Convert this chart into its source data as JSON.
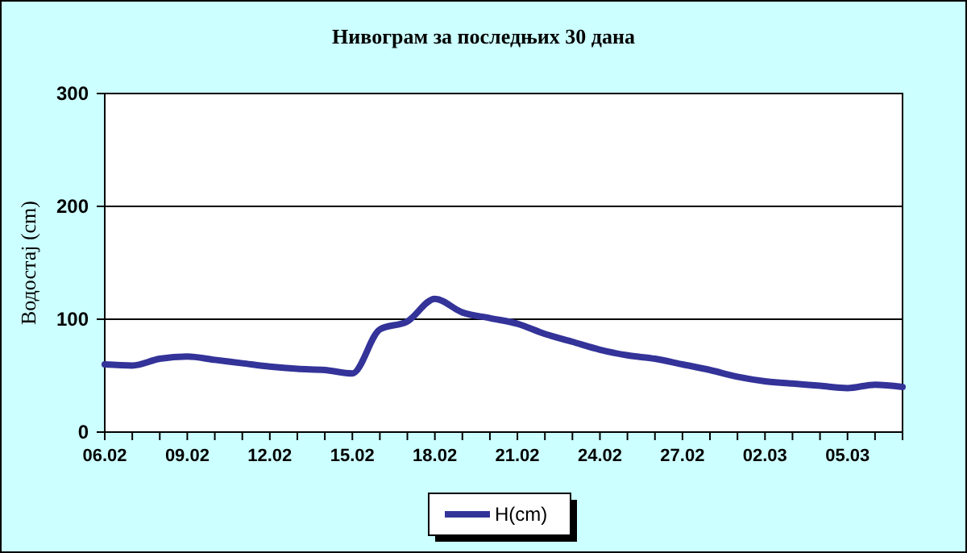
{
  "chart_data": {
    "type": "line",
    "title": "Нивограм за последњих 30 дана",
    "ylabel": "Водостај (cm)",
    "categories": [
      "06.02",
      null,
      null,
      "09.02",
      null,
      null,
      "12.02",
      null,
      null,
      "15.02",
      null,
      null,
      "18.02",
      null,
      null,
      "21.02",
      null,
      null,
      "24.02",
      null,
      null,
      "27.02",
      null,
      null,
      "02.03",
      null,
      null,
      "05.03",
      null,
      null
    ],
    "series": [
      {
        "name": "H(cm)",
        "color": "#333399",
        "values": [
          60,
          59,
          65,
          67,
          64,
          61,
          58,
          56,
          55,
          52,
          91,
          98,
          118,
          106,
          101,
          96,
          87,
          80,
          73,
          68,
          65,
          60,
          55,
          49,
          45,
          43,
          41,
          39,
          42,
          40
        ]
      }
    ],
    "ylim": [
      0,
      300
    ],
    "yticks": [
      0,
      100,
      200,
      300
    ],
    "grid": "y",
    "legend": "bottom",
    "marker": "none",
    "line_style": "solid"
  }
}
